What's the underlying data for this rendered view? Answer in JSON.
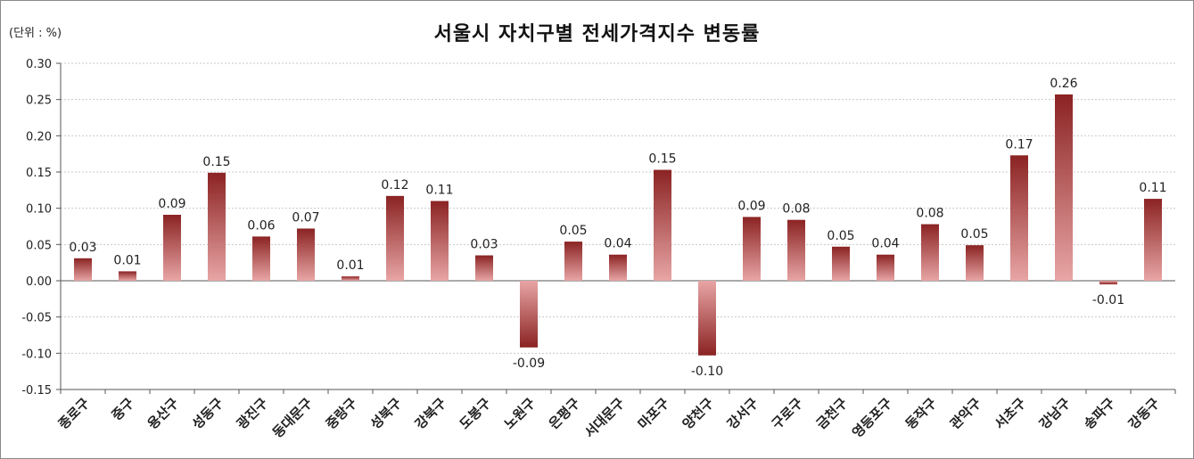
{
  "chart_data": {
    "type": "bar",
    "title": "서울시 자치구별 전세가격지수 변동률",
    "unit_label": "(단위 : %)",
    "categories": [
      "종로구",
      "중구",
      "용산구",
      "성동구",
      "광진구",
      "동대문구",
      "중랑구",
      "성북구",
      "강북구",
      "도봉구",
      "노원구",
      "은평구",
      "서대문구",
      "마포구",
      "양천구",
      "강서구",
      "구로구",
      "금천구",
      "영등포구",
      "동작구",
      "관악구",
      "서초구",
      "강남구",
      "송파구",
      "강동구"
    ],
    "values": [
      0.031,
      0.013,
      0.091,
      0.149,
      0.061,
      0.072,
      0.006,
      0.117,
      0.11,
      0.035,
      -0.092,
      0.054,
      0.036,
      0.153,
      -0.103,
      0.088,
      0.084,
      0.047,
      0.036,
      0.078,
      0.049,
      0.173,
      0.257,
      -0.005,
      0.113
    ],
    "value_labels": [
      "0.03",
      "0.01",
      "0.09",
      "0.15",
      "0.06",
      "0.07",
      "0.01",
      "0.12",
      "0.11",
      "0.03",
      "-0.09",
      "0.05",
      "0.04",
      "0.15",
      "-0.10",
      "0.09",
      "0.08",
      "0.05",
      "0.04",
      "0.08",
      "0.05",
      "0.17",
      "0.26",
      "-0.01",
      "0.11"
    ],
    "ylim": [
      -0.15,
      0.3
    ],
    "yticks": [
      "0.30",
      "0.25",
      "0.20",
      "0.15",
      "0.10",
      "0.05",
      "0.00",
      "-0.05",
      "-0.10",
      "-0.15"
    ],
    "ytick_values": [
      0.3,
      0.25,
      0.2,
      0.15,
      0.1,
      0.05,
      0.0,
      -0.05,
      -0.1,
      -0.15
    ],
    "grid": true,
    "bar_color_dark": "#8b2323",
    "bar_color_light": "#e8a5a5"
  }
}
